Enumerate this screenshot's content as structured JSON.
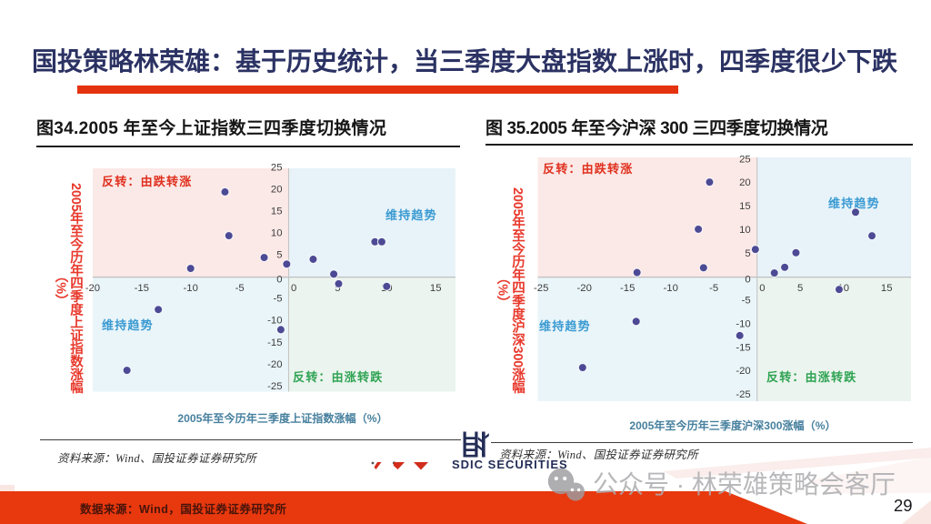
{
  "page": {
    "title": "国投策略林荣雄：基于历史统计，当三季度大盘指数上涨时，四季度很少下跌",
    "page_number": "29",
    "accent_red": "#e5330f",
    "title_navy": "#2b3263"
  },
  "footer": {
    "datasource": "数据来源：Wind，国投证券证券研究所"
  },
  "logo": {
    "cn": "国投",
    "en": "SDIC SECURITIES"
  },
  "watermark": {
    "icon": "wechat-icon",
    "text": "公众号·林荣雄策略会客厅"
  },
  "chart_data": [
    {
      "type": "scatter",
      "title": "图34.2005 年至今上证指数三四季度切换情况",
      "xlabel": "2005年至今历年三季度上证指数涨幅（%）",
      "ylabel": "2005年至今历年四季度上证指数涨幅（%）",
      "ylabel_lines": [
        "2005年至今历年四季度上证指数涨幅",
        "（%）"
      ],
      "source": "资料来源：Wind、国投证券证券研究所",
      "xlim": [
        -20,
        17
      ],
      "ylim": [
        -26.2,
        24.9
      ],
      "x_ticks": [
        -20,
        -15,
        -10,
        -5,
        0,
        5,
        10,
        15
      ],
      "y_ticks": [
        25,
        20,
        15,
        10,
        5,
        0,
        -5,
        -10,
        -15,
        -20,
        -25
      ],
      "grid": false,
      "legend": false,
      "quadrants": [
        {
          "pos": "top-left",
          "label": "反转：由跌转涨",
          "label_color": "#e0301e",
          "fill": "#fbe9e7"
        },
        {
          "pos": "top-right",
          "label": "维持趋势",
          "label_color": "#3a9ad2",
          "fill": "#e8f3f9"
        },
        {
          "pos": "bottom-left",
          "label": "维持趋势",
          "label_color": "#3a9ad2",
          "fill": "#eaf5f9"
        },
        {
          "pos": "bottom-right",
          "label": "反转：由涨转跌",
          "label_color": "#2fa353",
          "fill": "#ebf4ee"
        }
      ],
      "points": [
        [
          -6.5,
          19.5
        ],
        [
          -6.1,
          9.5
        ],
        [
          -10,
          2.0
        ],
        [
          -2.5,
          4.5
        ],
        [
          -0.2,
          3.0
        ],
        [
          2.5,
          4.1
        ],
        [
          4.6,
          0.7
        ],
        [
          5.1,
          -1.5
        ],
        [
          8.8,
          8.1
        ],
        [
          9.5,
          8.1
        ],
        [
          10.0,
          -2.1
        ],
        [
          -13.3,
          -7.4
        ],
        [
          -16.5,
          -21.3
        ],
        [
          -0.8,
          -12.0
        ]
      ],
      "point_color": "#4c4a94"
    },
    {
      "type": "scatter",
      "title": "图 35.2005 年至今沪深 300 三四季度切换情况",
      "xlabel": "2005年至今历年三季度沪深300涨幅（%）",
      "ylabel": "2005年至今历年四季度沪深300涨幅（%）",
      "ylabel_lines": [
        "2005年至今历年四季度沪深300涨幅",
        "（%）"
      ],
      "source": "资料来源：Wind、国投证券证券研究所",
      "xlim": [
        -25.4,
        17.8
      ],
      "ylim": [
        -26.3,
        25.4
      ],
      "x_ticks": [
        -25,
        -20,
        -15,
        -10,
        -5,
        0,
        5,
        10,
        15
      ],
      "y_ticks": [
        25,
        20,
        15,
        10,
        5,
        0,
        -5,
        -10,
        -15,
        -20,
        -25
      ],
      "grid": false,
      "legend": false,
      "quadrants": [
        {
          "pos": "top-left",
          "label": "反转：由跌转涨",
          "label_color": "#e0301e",
          "fill": "#fbe9e7"
        },
        {
          "pos": "top-right",
          "label": "维持趋势",
          "label_color": "#3a9ad2",
          "fill": "#e8f3f9"
        },
        {
          "pos": "bottom-left",
          "label": "维持趋势",
          "label_color": "#3a9ad2",
          "fill": "#eaf5f9"
        },
        {
          "pos": "bottom-right",
          "label": "反转：由涨转跌",
          "label_color": "#2fa353",
          "fill": "#ebf4ee"
        }
      ],
      "points": [
        [
          -5.5,
          20.2
        ],
        [
          -6.8,
          10.2
        ],
        [
          -13.9,
          1.0
        ],
        [
          -6.2,
          2.0
        ],
        [
          -0.2,
          5.9
        ],
        [
          2.0,
          0.9
        ],
        [
          3.2,
          2.1
        ],
        [
          4.5,
          5.2
        ],
        [
          13.3,
          8.8
        ],
        [
          11.4,
          13.8
        ],
        [
          9.5,
          -2.6
        ],
        [
          -14.0,
          -9.4
        ],
        [
          -20.2,
          -19.2
        ],
        [
          -2.0,
          -12.4
        ]
      ],
      "point_color": "#4c4a94"
    }
  ]
}
